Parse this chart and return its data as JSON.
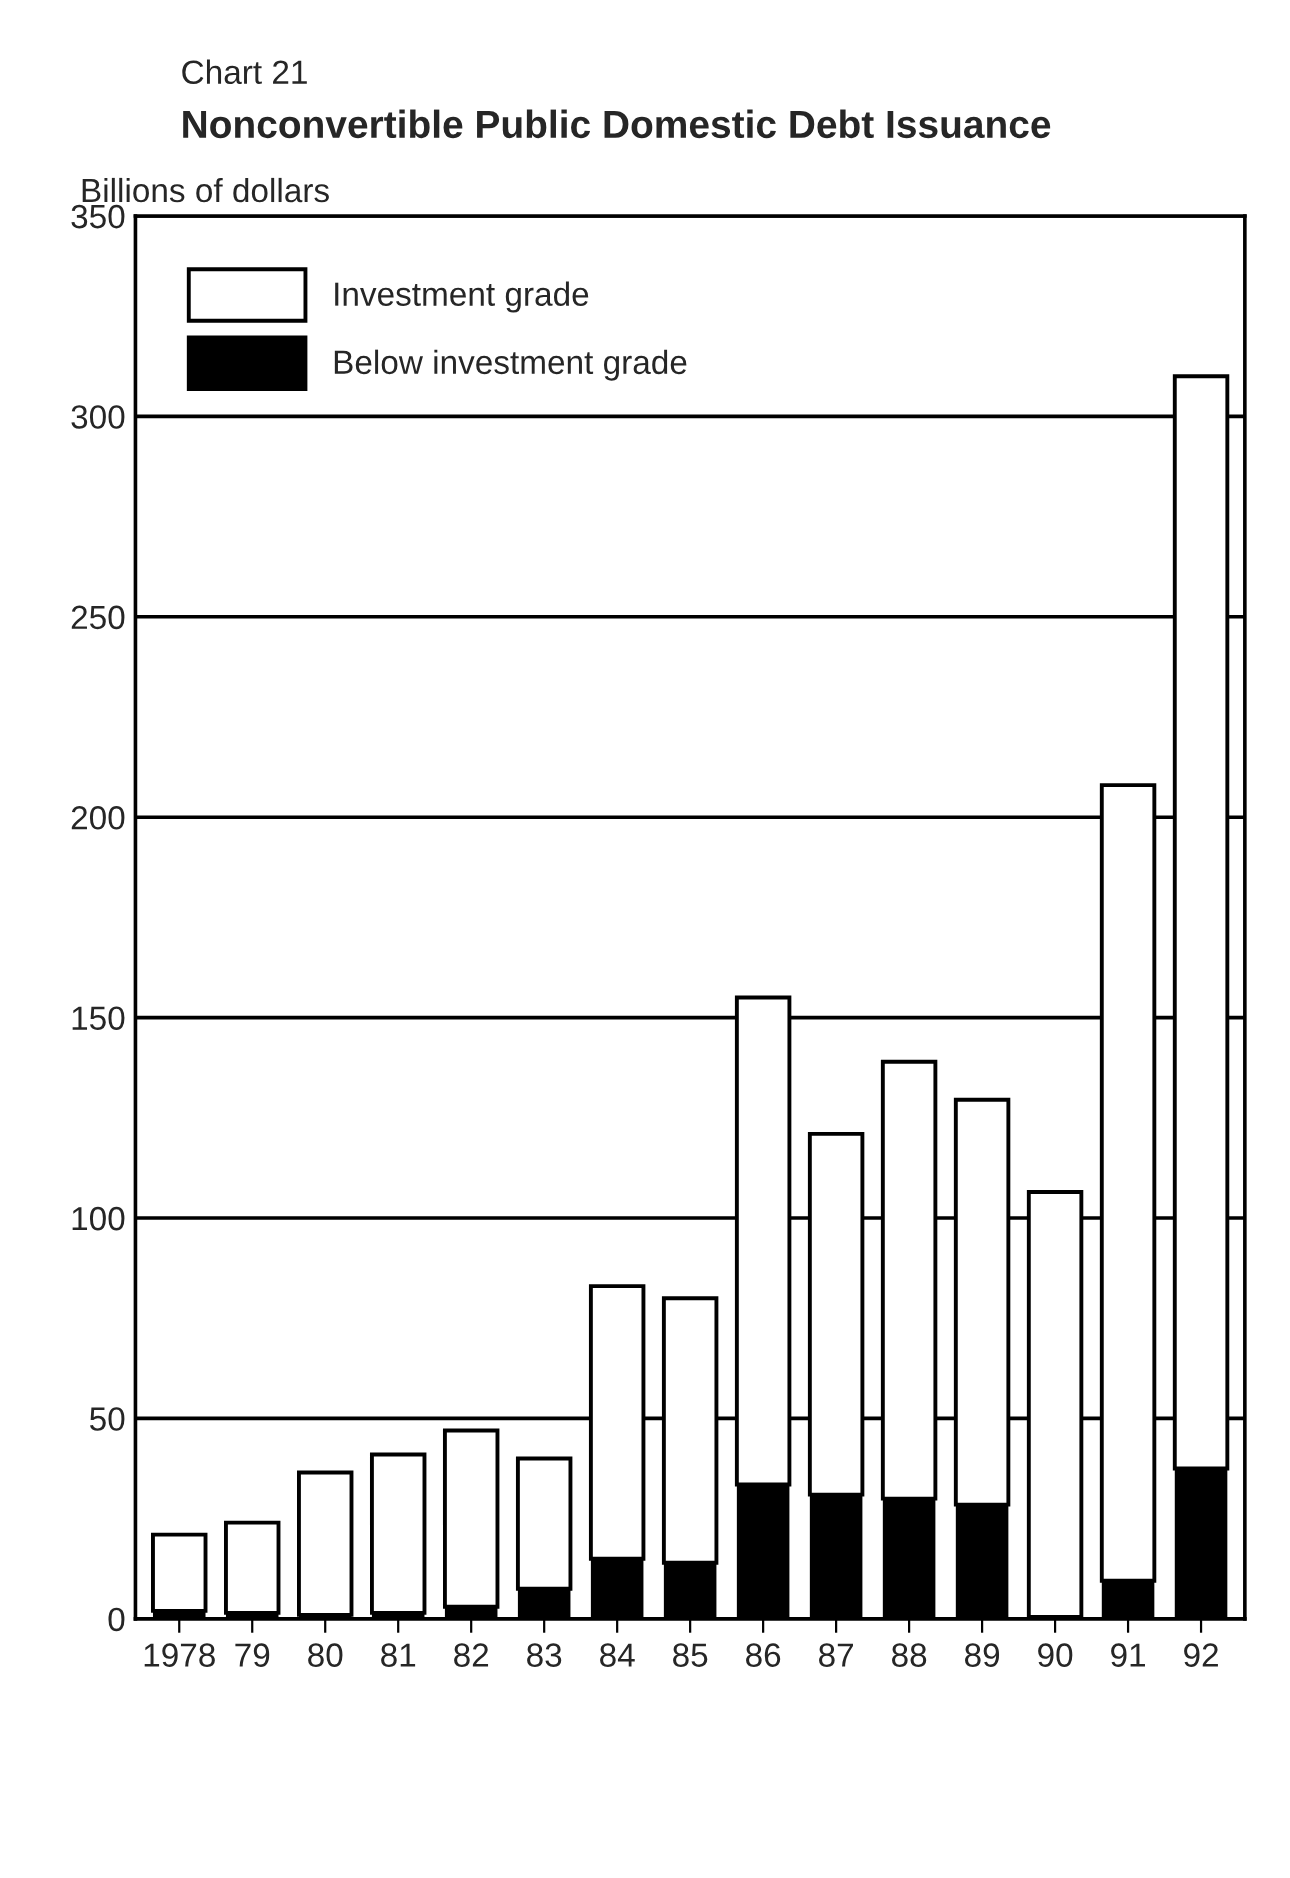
{
  "chart_data": {
    "type": "bar",
    "subtitle": "Chart 21",
    "title": "Nonconvertible Public Domestic Debt Issuance",
    "ylabel": "Billions of dollars",
    "categories": [
      "1978",
      "79",
      "80",
      "81",
      "82",
      "83",
      "84",
      "85",
      "86",
      "87",
      "88",
      "89",
      "90",
      "91",
      "92"
    ],
    "stacked": true,
    "series": [
      {
        "name": "Below investment grade",
        "color": "#000000",
        "values": [
          2,
          1.5,
          1,
          1.5,
          3,
          7.5,
          15,
          14,
          33.5,
          31,
          30,
          28.5,
          0.5,
          9.5,
          37.5
        ]
      },
      {
        "name": "Investment grade",
        "color": "#ffffff",
        "values": [
          19,
          22.5,
          35.5,
          39.5,
          44,
          32.5,
          68,
          66,
          121.5,
          90,
          109,
          101,
          106,
          198.5,
          272.5
        ]
      }
    ],
    "ylim": [
      0,
      350
    ],
    "yticks": [
      0,
      50,
      100,
      150,
      200,
      250,
      300,
      350
    ],
    "grid": "y",
    "legend": "top left"
  }
}
